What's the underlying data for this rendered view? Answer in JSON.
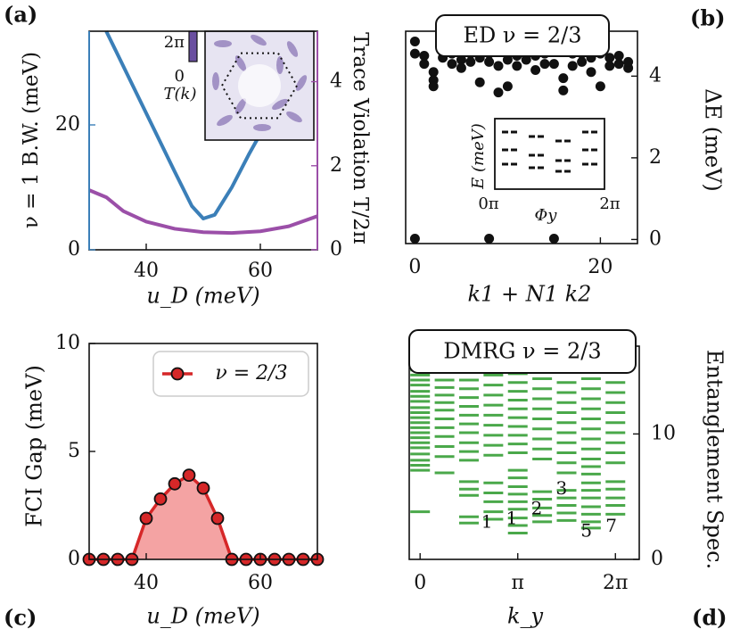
{
  "panel_labels": {
    "a": "(a)",
    "b": "(b)",
    "c": "(c)",
    "d": "(d)"
  },
  "colors": {
    "blue": "#3b7fb8",
    "purple": "#9b4fa8",
    "black": "#111111",
    "red": "#d62728",
    "red_fill": "#f4a3a3",
    "green": "#4aa84a",
    "inset_bg": "#e7e4f2",
    "inset_line": "#6a4fa0"
  },
  "chart_data": [
    {
      "id": "a",
      "type": "line",
      "xlabel": "u_D (meV)",
      "xlim": [
        30,
        70
      ],
      "xticks": [
        40,
        60
      ],
      "ylabel_left": "ν = 1 B.W. (meV)",
      "ylim_left": [
        0,
        35
      ],
      "yticks_left": [
        0,
        20
      ],
      "ylabel_right": "Trace Violation T/2π",
      "ylim_right": [
        0,
        5.2
      ],
      "yticks_right": [
        0,
        2,
        4
      ],
      "series": [
        {
          "name": "ν = 1 bandwidth",
          "axis": "left",
          "color": "blue",
          "x": [
            33,
            37,
            41,
            45,
            48,
            50,
            52,
            55,
            58,
            61,
            64
          ],
          "y": [
            35,
            27.5,
            20,
            12.5,
            7,
            5,
            5.6,
            10,
            15.3,
            20.2,
            25
          ]
        },
        {
          "name": "trace violation",
          "axis": "right",
          "color": "purple",
          "x": [
            30,
            33,
            36,
            40,
            45,
            50,
            55,
            60,
            65,
            70
          ],
          "y": [
            1.42,
            1.25,
            0.92,
            0.67,
            0.5,
            0.42,
            0.4,
            0.44,
            0.56,
            0.8
          ]
        }
      ],
      "inset": {
        "label_top": "2π",
        "label_bottom": "0",
        "label_name": "T(k)"
      }
    },
    {
      "id": "b",
      "type": "scatter",
      "title": "ED ν = 2/3",
      "xlabel": "k1 + N1 k2",
      "xlim": [
        -1,
        24
      ],
      "xticks": [
        0,
        20
      ],
      "ylabel": "ΔE (meV)",
      "ylim": [
        -0.1,
        5.1
      ],
      "yticks": [
        0,
        2,
        4
      ],
      "points_x": [
        0,
        0,
        1,
        1,
        2,
        2,
        2,
        3,
        4,
        4,
        5,
        5,
        6,
        6,
        7,
        7,
        8,
        8,
        9,
        9,
        10,
        10,
        11,
        11,
        12,
        12,
        13,
        13,
        14,
        14,
        15,
        15,
        16,
        16,
        17,
        17,
        18,
        18,
        19,
        19,
        20,
        20,
        21,
        21,
        22,
        22,
        23,
        23,
        0,
        8,
        15
      ],
      "points_y": [
        4.85,
        4.55,
        4.3,
        4.5,
        4.1,
        3.9,
        3.75,
        4.45,
        4.55,
        4.3,
        4.4,
        4.2,
        4.55,
        4.35,
        3.85,
        4.45,
        4.35,
        4.55,
        3.6,
        4.25,
        3.75,
        4.4,
        4.5,
        4.25,
        4.6,
        4.4,
        4.15,
        4.5,
        4.55,
        4.3,
        4.3,
        4.6,
        3.65,
        3.95,
        4.55,
        4.25,
        4.35,
        4.55,
        4.1,
        4.45,
        3.75,
        4.55,
        4.45,
        4.25,
        4.3,
        4.5,
        4.2,
        4.35,
        0.02,
        0.02,
        0.02
      ],
      "inset": {
        "xlabel": "Φy",
        "ylabel": "E (meV)",
        "xtick_left": "0π",
        "xtick_right": "2π"
      }
    },
    {
      "id": "c",
      "type": "line",
      "xlabel": "u_D (meV)",
      "ylabel": "FCI Gap (meV)",
      "xlim": [
        30,
        70
      ],
      "ylim": [
        0,
        10
      ],
      "xticks": [
        40,
        60
      ],
      "yticks": [
        0,
        5,
        10
      ],
      "legend": "ν = 2/3",
      "legend_position": "top-right",
      "series": [
        {
          "name": "ν = 2/3",
          "color": "red",
          "x": [
            30,
            32.5,
            35,
            37.5,
            40,
            42.5,
            45,
            47.5,
            50,
            52.5,
            55,
            57.5,
            60,
            62.5,
            65,
            67.5,
            70
          ],
          "y": [
            0,
            0,
            0,
            0,
            1.9,
            2.8,
            3.5,
            3.9,
            3.3,
            1.9,
            0,
            0,
            0,
            0,
            0,
            0,
            0
          ]
        }
      ]
    },
    {
      "id": "d",
      "type": "scatter",
      "title": "DMRG ν = 2/3",
      "xlabel": "k_y",
      "ylabel": "Entanglement Spec.",
      "xlim": [
        -0.35,
        7.05
      ],
      "ylim": [
        0,
        17
      ],
      "xticks": [
        "0",
        "π",
        "2π"
      ],
      "yticks": [
        0,
        10
      ],
      "level_labels": [
        {
          "text": "1",
          "x": 2.15,
          "y": 2.9
        },
        {
          "text": "1",
          "x": 2.95,
          "y": 3.2
        },
        {
          "text": "2",
          "x": 3.75,
          "y": 4.0
        },
        {
          "text": "3",
          "x": 4.55,
          "y": 5.6
        },
        {
          "text": "5",
          "x": 5.35,
          "y": 2.2
        },
        {
          "text": "7",
          "x": 6.15,
          "y": 2.6
        }
      ],
      "columns": [
        {
          "k": 0,
          "levels": [
            3.8,
            7.1,
            7.5,
            7.9,
            8.4,
            8.9,
            9.3,
            9.7,
            10.1,
            10.5,
            10.9,
            11.3,
            11.7,
            12.1,
            12.6,
            13.0,
            13.4,
            13.9,
            14.3,
            14.7,
            15.1,
            15.5,
            15.9,
            16.3,
            16.7
          ]
        },
        {
          "k": 0.7854,
          "levels": [
            6.9,
            8.2,
            9.0,
            9.8,
            10.5,
            11.2,
            11.9,
            12.5,
            13.1,
            13.7,
            14.3,
            14.9,
            15.5,
            16.0,
            16.5
          ]
        },
        {
          "k": 1.5708,
          "levels": [
            2.9,
            3.4,
            5.1,
            5.6,
            6.2,
            7.9,
            8.6,
            9.3,
            10.1,
            10.8,
            11.5,
            12.2,
            12.9,
            13.6,
            14.3,
            15.0,
            15.7,
            16.4
          ]
        },
        {
          "k": 2.3562,
          "levels": [
            3.2,
            3.8,
            4.6,
            5.3,
            6.1,
            8.3,
            9.1,
            9.9,
            10.7,
            11.5,
            12.3,
            13.1,
            13.9,
            14.7,
            15.5,
            16.3
          ]
        },
        {
          "k": 3.1416,
          "levels": [
            2.1,
            2.7,
            3.3,
            4.0,
            4.6,
            5.2,
            5.8,
            6.5,
            7.1,
            8.5,
            9.2,
            9.9,
            10.6,
            11.3,
            12.0,
            12.7,
            13.4,
            14.1,
            14.8,
            15.5,
            16.2,
            16.8
          ]
        },
        {
          "k": 3.927,
          "levels": [
            3.0,
            3.5,
            4.1,
            4.8,
            5.4,
            8.0,
            8.8,
            9.6,
            10.4,
            11.2,
            12.0,
            12.8,
            13.6,
            14.4,
            15.2,
            16.0,
            16.7
          ]
        },
        {
          "k": 4.7124,
          "levels": [
            3.1,
            3.7,
            4.3,
            4.9,
            5.5,
            6.9,
            7.7,
            8.5,
            9.3,
            10.1,
            10.9,
            11.7,
            12.5,
            13.3,
            14.1,
            14.9,
            15.7,
            16.5
          ]
        },
        {
          "k": 5.4978,
          "levels": [
            2.5,
            3.0,
            3.6,
            4.2,
            4.9,
            5.5,
            6.1,
            6.8,
            7.4,
            8.0,
            8.8,
            9.6,
            10.4,
            11.2,
            12.0,
            12.8,
            13.6,
            14.4,
            15.2,
            16.0,
            16.8
          ]
        },
        {
          "k": 6.2832,
          "levels": [
            3.6,
            4.3,
            4.9,
            5.6,
            6.2,
            7.7,
            8.5,
            9.3,
            10.1,
            10.9,
            11.7,
            12.5,
            13.3,
            14.1,
            14.9,
            15.7,
            16.5
          ]
        }
      ]
    }
  ]
}
